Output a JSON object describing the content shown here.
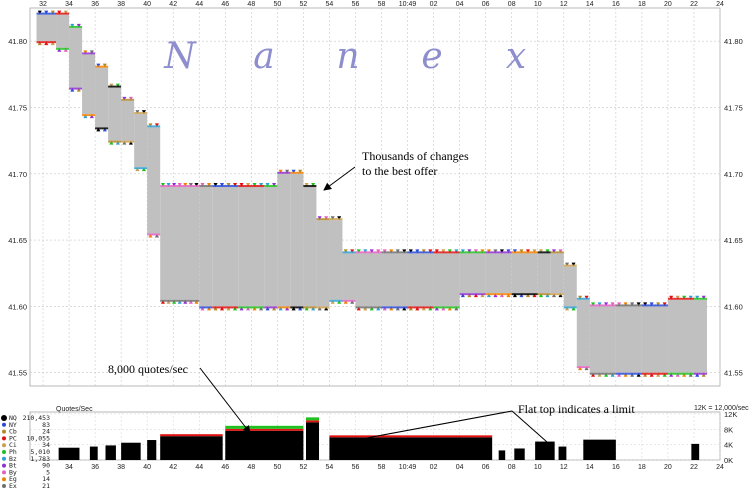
{
  "chart_data": [
    {
      "type": "area",
      "title": "",
      "watermark": [
        "N",
        "a",
        "n",
        "e",
        "x"
      ],
      "x_tick_labels": [
        "32",
        "34",
        "36",
        "38",
        "40",
        "42",
        "44",
        "46",
        "48",
        "50",
        "52",
        "54",
        "56",
        "58",
        "10:49",
        "02",
        "04",
        "06",
        "08",
        "10",
        "12",
        "14",
        "16",
        "18",
        "20",
        "22",
        "24"
      ],
      "center_time_label": "10:49",
      "y_ticks": [
        "41.80",
        "41.75",
        "41.70",
        "41.65",
        "41.60",
        "41.55"
      ],
      "y_tick_values": [
        41.8,
        41.75,
        41.7,
        41.65,
        41.6,
        41.55
      ],
      "ylim": [
        41.54,
        41.825
      ],
      "grid": true,
      "series": [
        {
          "label": "NBBO spread band",
          "color": "#c0c0c0",
          "x": [
            31.5,
            33,
            34,
            35,
            36,
            37,
            38,
            39,
            40,
            41,
            44,
            45,
            47,
            49,
            50,
            51,
            52,
            53,
            54,
            55,
            56,
            58,
            60,
            62,
            64,
            66,
            68,
            70,
            71,
            72,
            73,
            74,
            76,
            78,
            80,
            82,
            83
          ],
          "bid": [
            41.8,
            41.795,
            41.765,
            41.745,
            41.735,
            41.725,
            41.725,
            41.705,
            41.655,
            41.605,
            41.6,
            41.6,
            41.6,
            41.6,
            41.6,
            41.6,
            41.6,
            41.6,
            41.605,
            41.605,
            41.6,
            41.6,
            41.6,
            41.6,
            41.61,
            41.61,
            41.61,
            41.61,
            41.61,
            41.6,
            41.555,
            41.55,
            41.55,
            41.55,
            41.55,
            41.55,
            41.55
          ],
          "ask": [
            41.82,
            41.82,
            41.81,
            41.79,
            41.78,
            41.765,
            41.755,
            41.745,
            41.735,
            41.69,
            41.69,
            41.69,
            41.69,
            41.69,
            41.7,
            41.7,
            41.69,
            41.665,
            41.665,
            41.64,
            41.64,
            41.64,
            41.64,
            41.64,
            41.64,
            41.64,
            41.64,
            41.64,
            41.64,
            41.63,
            41.605,
            41.6,
            41.6,
            41.6,
            41.605,
            41.605,
            41.605
          ]
        }
      ],
      "annotations": [
        {
          "text_lines": [
            "Thousands of changes",
            "to the best offer"
          ],
          "points_to_x": 52,
          "points_to_y": 41.69
        },
        {
          "text_lines": [
            "8,000 quotes/sec"
          ],
          "points_to_x": 47
        }
      ]
    },
    {
      "type": "bar",
      "ylabel": "Quotes/Sec",
      "scale_note": "12K = 12,000/sec",
      "y_ticks": [
        "12K",
        "8K",
        "4K",
        "0K"
      ],
      "y_tick_values": [
        12000,
        8000,
        4000,
        0
      ],
      "ylim": [
        0,
        12500
      ],
      "x_tick_labels": [
        "34",
        "36",
        "38",
        "40",
        "42",
        "44",
        "46",
        "48",
        "50",
        "52",
        "54",
        "56",
        "58",
        "10:49",
        "02",
        "04",
        "06",
        "08",
        "10",
        "12",
        "14",
        "16",
        "18",
        "20",
        "22",
        "24"
      ],
      "segments": [
        {
          "x0": 33.2,
          "x1": 34.8,
          "rate": 3200
        },
        {
          "x0": 35.6,
          "x1": 36.2,
          "rate": 3500
        },
        {
          "x0": 36.8,
          "x1": 37.6,
          "rate": 3800
        },
        {
          "x0": 38.0,
          "x1": 39.5,
          "rate": 4500
        },
        {
          "x0": 40.0,
          "x1": 40.7,
          "rate": 5200
        },
        {
          "x0": 41.0,
          "x1": 45.8,
          "rate": 6200
        },
        {
          "x0": 46.0,
          "x1": 52.0,
          "rate": 7600
        },
        {
          "x0": 52.2,
          "x1": 53.2,
          "rate": 9800
        },
        {
          "x0": 54.0,
          "x1": 66.5,
          "rate": 5900
        },
        {
          "x0": 67.0,
          "x1": 67.5,
          "rate": 2500
        },
        {
          "x0": 68.2,
          "x1": 69.0,
          "rate": 3000
        },
        {
          "x0": 69.8,
          "x1": 71.3,
          "rate": 4800
        },
        {
          "x0": 71.6,
          "x1": 72.2,
          "rate": 3500
        },
        {
          "x0": 73.5,
          "x1": 76.0,
          "rate": 5300
        },
        {
          "x0": 81.8,
          "x1": 82.4,
          "rate": 4200
        }
      ],
      "annotations": [
        {
          "text_lines": [
            "Flat top indicates a limit"
          ]
        }
      ],
      "legend": [
        {
          "name": "NQ",
          "value": "210,453",
          "color": "#000000"
        },
        {
          "name": "NY",
          "value": "83",
          "color": "#2a4bd8"
        },
        {
          "name": "Cb",
          "value": "24",
          "color": "#b08a28"
        },
        {
          "name": "PC",
          "value": "10,055",
          "color": "#e01010"
        },
        {
          "name": "Ci",
          "value": "34",
          "color": "#caa050"
        },
        {
          "name": "Ph",
          "value": "5,010",
          "color": "#20c020"
        },
        {
          "name": "Bz",
          "value": "1,783",
          "color": "#30a0d0"
        },
        {
          "name": "Bt",
          "value": "90",
          "color": "#9030d0"
        },
        {
          "name": "By",
          "value": "5",
          "color": "#e060c0"
        },
        {
          "name": "Eg",
          "value": "14",
          "color": "#f08000"
        },
        {
          "name": "Ex",
          "value": "21",
          "color": "#707070"
        }
      ]
    }
  ]
}
